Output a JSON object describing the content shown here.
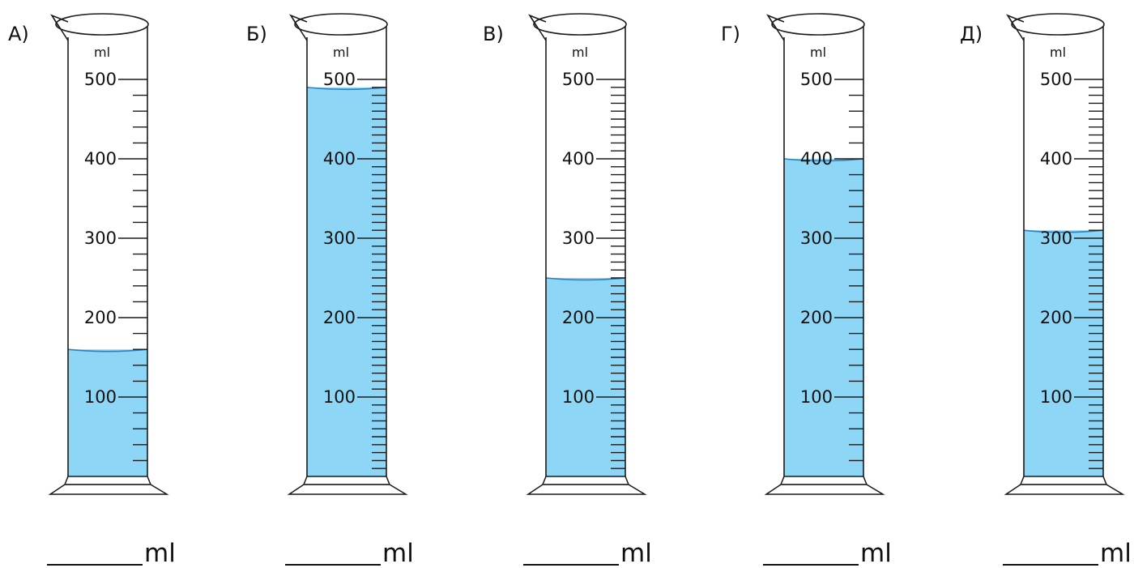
{
  "unit": "ml",
  "colors": {
    "liquid": "#8dd6f5",
    "meniscus": "#2f7fc0",
    "outline": "#1a1a1a",
    "text": "#111111"
  },
  "cylinders": [
    {
      "label": "А)",
      "level": 160,
      "minor_step": 20,
      "ticks": [
        "500",
        "400",
        "300",
        "200",
        "100"
      ],
      "answer_unit": "ml"
    },
    {
      "label": "Б)",
      "level": 490,
      "minor_step": 10,
      "ticks": [
        "500",
        "400",
        "300",
        "200",
        "100"
      ],
      "answer_unit": "ml"
    },
    {
      "label": "В)",
      "level": 250,
      "minor_step": 10,
      "ticks": [
        "500",
        "400",
        "300",
        "200",
        "100"
      ],
      "answer_unit": "ml"
    },
    {
      "label": "Г)",
      "level": 400,
      "minor_step": 20,
      "ticks": [
        "500",
        "400",
        "300",
        "200",
        "100"
      ],
      "answer_unit": "ml"
    },
    {
      "label": "Д)",
      "level": 310,
      "minor_step": 10,
      "ticks": [
        "500",
        "400",
        "300",
        "200",
        "100"
      ],
      "answer_unit": "ml"
    }
  ]
}
